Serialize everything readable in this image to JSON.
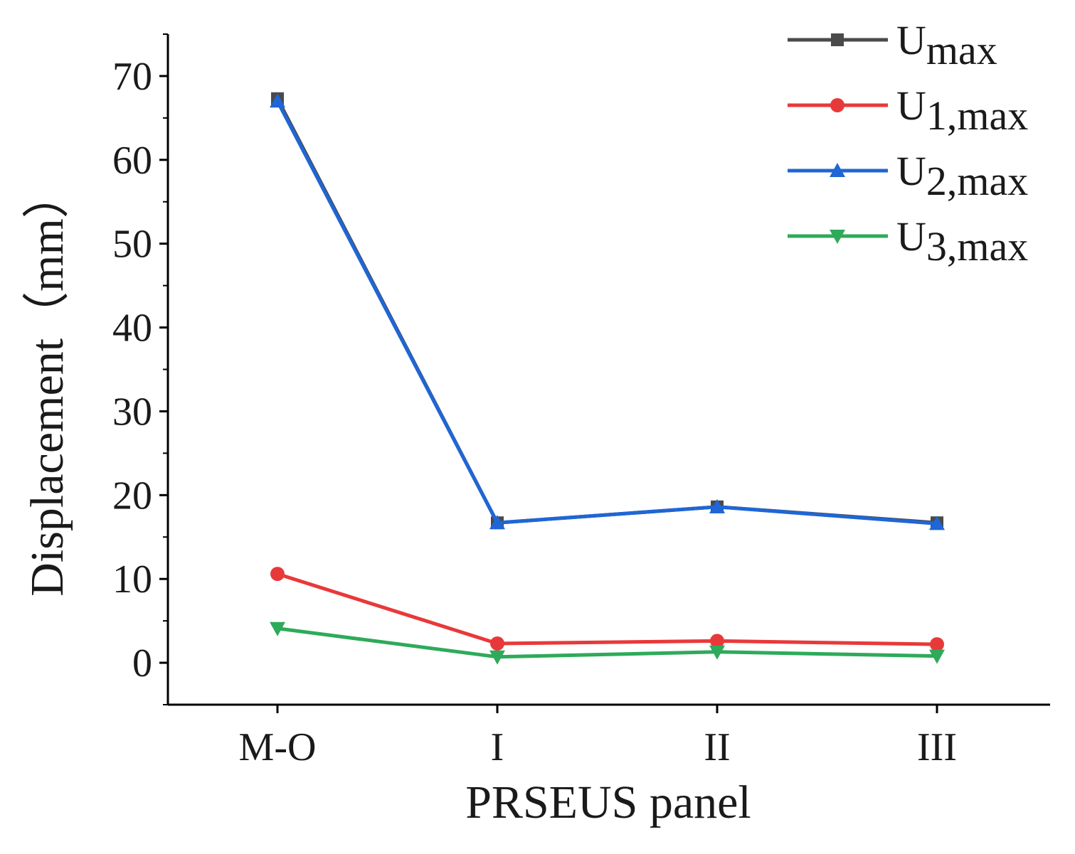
{
  "chart_data": {
    "type": "line",
    "title": "",
    "xlabel": "PRSEUS panel",
    "ylabel": "Displacement（mm）",
    "categories": [
      "M-O",
      "I",
      "II",
      "III"
    ],
    "ylim": [
      -5,
      75
    ],
    "yticks": [
      0,
      10,
      20,
      30,
      40,
      50,
      60,
      70
    ],
    "ytick_labels": [
      "0",
      "10",
      "20",
      "30",
      "40",
      "50",
      "60",
      "70"
    ],
    "legend_position": "top-right",
    "series": [
      {
        "name": "Umax",
        "base": "U",
        "sub": "max",
        "color": "#4a4a4a",
        "marker": "square",
        "values": [
          67.3,
          16.7,
          18.6,
          16.7
        ]
      },
      {
        "name": "U1,max",
        "base": "U",
        "sub": "1,max",
        "color": "#e8393a",
        "marker": "circle",
        "values": [
          10.6,
          2.3,
          2.6,
          2.2
        ]
      },
      {
        "name": "U2,max",
        "base": "U",
        "sub": "2,max",
        "color": "#1f66d6",
        "marker": "triangle-up",
        "values": [
          67.0,
          16.7,
          18.6,
          16.6
        ]
      },
      {
        "name": "U3,max",
        "base": "U",
        "sub": "3,max",
        "color": "#2eaa5a",
        "marker": "triangle-down",
        "values": [
          4.1,
          0.7,
          1.3,
          0.8
        ]
      }
    ]
  }
}
